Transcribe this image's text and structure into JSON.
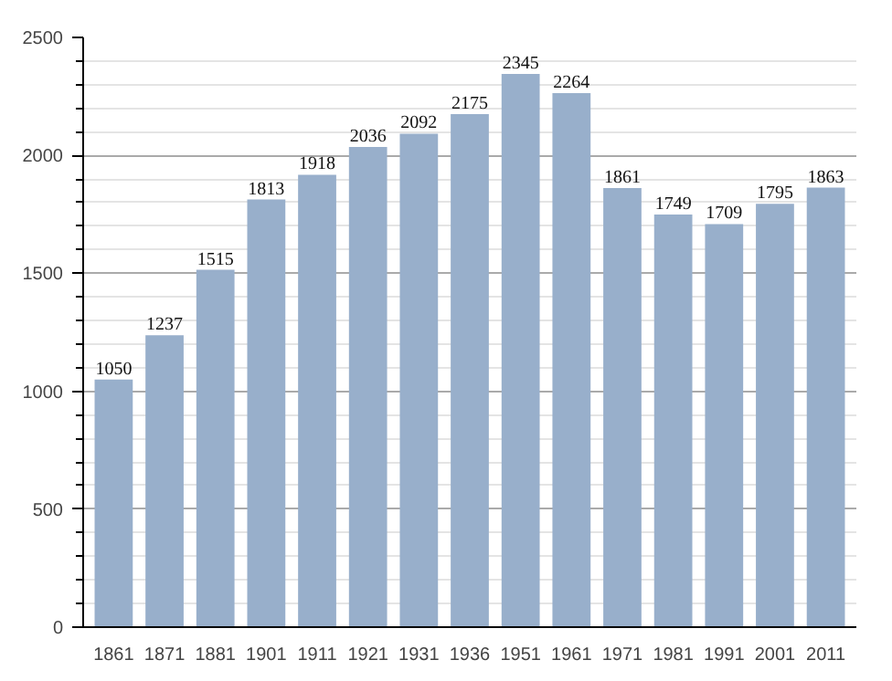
{
  "chart_data": {
    "type": "bar",
    "categories": [
      "1861",
      "1871",
      "1881",
      "1901",
      "1911",
      "1921",
      "1931",
      "1936",
      "1951",
      "1961",
      "1971",
      "1981",
      "1991",
      "2001",
      "2011"
    ],
    "values": [
      1050,
      1237,
      1515,
      1813,
      1918,
      2036,
      2092,
      2175,
      2345,
      2264,
      1861,
      1749,
      1709,
      1795,
      1863
    ],
    "color": "#98afcb",
    "ylim": [
      0,
      2500
    ],
    "yticks": [
      0,
      500,
      1000,
      1500,
      2000,
      2500
    ],
    "grid": "y",
    "data_labels": true
  }
}
